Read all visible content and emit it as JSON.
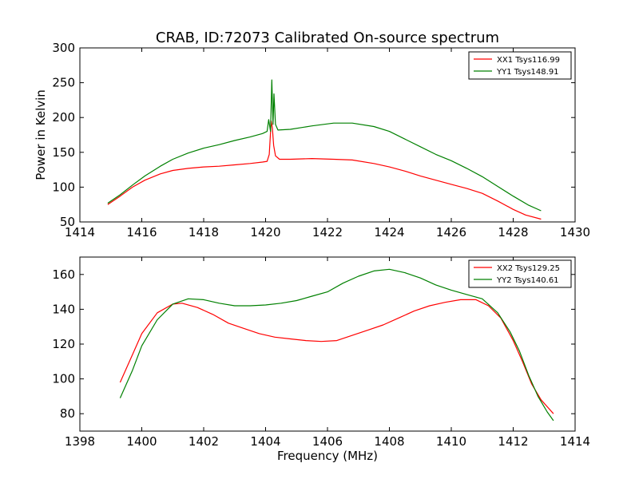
{
  "chart_data": [
    {
      "type": "line",
      "title": "CRAB, ID:72073 Calibrated On-source spectrum",
      "xlabel": "",
      "ylabel": "Power in Kelvin",
      "xlim": [
        1414,
        1430
      ],
      "ylim": [
        50,
        300
      ],
      "xticks": [
        "1414",
        "1416",
        "1418",
        "1420",
        "1422",
        "1424",
        "1426",
        "1428",
        "1430"
      ],
      "yticks": [
        "50",
        "100",
        "150",
        "200",
        "250",
        "300"
      ],
      "legend_position": "top-right",
      "series": [
        {
          "name": "XX1 Tsys116.99",
          "color": "#ff0000",
          "points": [
            [
              1414.9,
              75
            ],
            [
              1415.3,
              87
            ],
            [
              1415.7,
              100
            ],
            [
              1416.1,
              110
            ],
            [
              1416.6,
              119
            ],
            [
              1417.0,
              124
            ],
            [
              1417.5,
              127
            ],
            [
              1418.0,
              129
            ],
            [
              1418.5,
              130
            ],
            [
              1419.0,
              132
            ],
            [
              1419.5,
              134
            ],
            [
              1419.9,
              136
            ],
            [
              1420.05,
              137
            ],
            [
              1420.12,
              147
            ],
            [
              1420.18,
              195
            ],
            [
              1420.22,
              185
            ],
            [
              1420.26,
              160
            ],
            [
              1420.32,
              145
            ],
            [
              1420.45,
              140
            ],
            [
              1420.8,
              140
            ],
            [
              1421.5,
              141
            ],
            [
              1422.2,
              140
            ],
            [
              1422.8,
              139
            ],
            [
              1423.5,
              134
            ],
            [
              1424.0,
              129
            ],
            [
              1424.5,
              123
            ],
            [
              1425.0,
              116
            ],
            [
              1425.5,
              110
            ],
            [
              1426.0,
              104
            ],
            [
              1426.5,
              98
            ],
            [
              1427.0,
              91
            ],
            [
              1427.5,
              80
            ],
            [
              1428.0,
              68
            ],
            [
              1428.4,
              60
            ],
            [
              1428.9,
              54
            ]
          ]
        },
        {
          "name": "YY1 Tsys148.91",
          "color": "#008000",
          "points": [
            [
              1414.9,
              77
            ],
            [
              1415.3,
              89
            ],
            [
              1415.7,
              103
            ],
            [
              1416.1,
              116
            ],
            [
              1416.6,
              130
            ],
            [
              1417.0,
              140
            ],
            [
              1417.5,
              149
            ],
            [
              1418.0,
              156
            ],
            [
              1418.5,
              161
            ],
            [
              1419.0,
              167
            ],
            [
              1419.5,
              172
            ],
            [
              1419.9,
              177
            ],
            [
              1420.05,
              180
            ],
            [
              1420.1,
              197
            ],
            [
              1420.16,
              180
            ],
            [
              1420.2,
              254
            ],
            [
              1420.24,
              190
            ],
            [
              1420.27,
              234
            ],
            [
              1420.32,
              190
            ],
            [
              1420.4,
              182
            ],
            [
              1420.8,
              183
            ],
            [
              1421.5,
              188
            ],
            [
              1422.2,
              192
            ],
            [
              1422.8,
              192
            ],
            [
              1423.5,
              187
            ],
            [
              1424.0,
              180
            ],
            [
              1424.5,
              169
            ],
            [
              1425.0,
              158
            ],
            [
              1425.5,
              147
            ],
            [
              1426.0,
              138
            ],
            [
              1426.5,
              127
            ],
            [
              1427.0,
              115
            ],
            [
              1427.5,
              101
            ],
            [
              1428.0,
              87
            ],
            [
              1428.5,
              74
            ],
            [
              1428.9,
              66
            ]
          ]
        }
      ]
    },
    {
      "type": "line",
      "title": "",
      "xlabel": "Frequency (MHz)",
      "ylabel": "",
      "xlim": [
        1398,
        1414
      ],
      "ylim": [
        70,
        170
      ],
      "xticks": [
        "1398",
        "1400",
        "1402",
        "1404",
        "1406",
        "1408",
        "1410",
        "1412",
        "1414"
      ],
      "yticks": [
        "80",
        "100",
        "120",
        "140",
        "160"
      ],
      "legend_position": "top-right",
      "series": [
        {
          "name": "XX2 Tsys129.25",
          "color": "#ff0000",
          "points": [
            [
              1399.3,
              98
            ],
            [
              1399.7,
              114
            ],
            [
              1400.0,
              126
            ],
            [
              1400.5,
              138
            ],
            [
              1401.0,
              143
            ],
            [
              1401.3,
              143.5
            ],
            [
              1401.8,
              141
            ],
            [
              1402.3,
              137
            ],
            [
              1402.8,
              132
            ],
            [
              1403.3,
              129
            ],
            [
              1403.8,
              126
            ],
            [
              1404.3,
              124
            ],
            [
              1404.8,
              123
            ],
            [
              1405.3,
              122
            ],
            [
              1405.8,
              121.5
            ],
            [
              1406.3,
              122
            ],
            [
              1406.8,
              125
            ],
            [
              1407.3,
              128
            ],
            [
              1407.8,
              131
            ],
            [
              1408.3,
              135
            ],
            [
              1408.8,
              139
            ],
            [
              1409.3,
              142
            ],
            [
              1409.8,
              144
            ],
            [
              1410.3,
              145.5
            ],
            [
              1410.8,
              145.5
            ],
            [
              1411.2,
              142
            ],
            [
              1411.6,
              135
            ],
            [
              1412.0,
              122
            ],
            [
              1412.3,
              110
            ],
            [
              1412.6,
              97
            ],
            [
              1412.9,
              88
            ],
            [
              1413.3,
              80
            ]
          ]
        },
        {
          "name": "YY2 Tsys140.61",
          "color": "#008000",
          "points": [
            [
              1399.3,
              89
            ],
            [
              1399.7,
              105
            ],
            [
              1400.0,
              119
            ],
            [
              1400.5,
              134
            ],
            [
              1401.0,
              143
            ],
            [
              1401.5,
              146
            ],
            [
              1402.0,
              145.5
            ],
            [
              1402.5,
              143.5
            ],
            [
              1403.0,
              142
            ],
            [
              1403.5,
              142
            ],
            [
              1404.0,
              142.5
            ],
            [
              1404.5,
              143.5
            ],
            [
              1405.0,
              145
            ],
            [
              1405.5,
              147.5
            ],
            [
              1406.0,
              150
            ],
            [
              1406.5,
              155
            ],
            [
              1407.0,
              159
            ],
            [
              1407.5,
              162
            ],
            [
              1408.0,
              163
            ],
            [
              1408.5,
              161
            ],
            [
              1409.0,
              158
            ],
            [
              1409.5,
              154
            ],
            [
              1410.0,
              151
            ],
            [
              1410.5,
              148.5
            ],
            [
              1411.0,
              146
            ],
            [
              1411.5,
              138
            ],
            [
              1411.9,
              127
            ],
            [
              1412.2,
              116
            ],
            [
              1412.5,
              102
            ],
            [
              1412.8,
              90
            ],
            [
              1413.1,
              81
            ],
            [
              1413.3,
              76
            ]
          ]
        }
      ]
    }
  ]
}
